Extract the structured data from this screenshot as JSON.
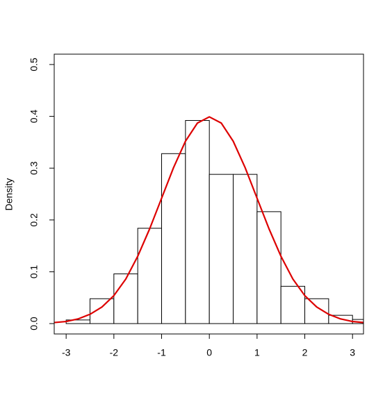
{
  "chart_data": {
    "type": "histogram",
    "y_label": "Density",
    "bins": [
      -3,
      -2.5,
      -2,
      -1.5,
      -1,
      -0.5,
      0,
      0.5,
      1,
      1.5,
      2,
      2.5,
      3,
      3.5
    ],
    "values": [
      0.007,
      0.048,
      0.096,
      0.184,
      0.328,
      0.392,
      0.288,
      0.288,
      0.216,
      0.072,
      0.048,
      0.016,
      0.008
    ],
    "color": "#ffffff",
    "xlim": [
      -3.25,
      3.23
    ],
    "xticks": [
      -3,
      -2,
      -1,
      0,
      1,
      2,
      3
    ],
    "ylim": [
      -0.02,
      0.52
    ],
    "yticks": [
      {
        "value": 0,
        "label": "0.0"
      },
      0.1,
      0.2,
      0.3,
      0.4,
      0.5
    ],
    "curve": {
      "type": "line",
      "color": "#dd0000",
      "x": [
        -3.25,
        -3,
        -2.75,
        -2.5,
        -2.25,
        -2,
        -1.75,
        -1.5,
        -1.25,
        -1,
        -0.75,
        -0.5,
        -0.25,
        0,
        0.25,
        0.5,
        0.75,
        1,
        1.25,
        1.5,
        1.75,
        2,
        2.25,
        2.5,
        2.75,
        3,
        3.25
      ],
      "values": [
        0.002,
        0.004,
        0.009,
        0.018,
        0.032,
        0.054,
        0.086,
        0.13,
        0.183,
        0.242,
        0.301,
        0.352,
        0.387,
        0.399,
        0.387,
        0.352,
        0.301,
        0.242,
        0.183,
        0.13,
        0.086,
        0.054,
        0.032,
        0.018,
        0.009,
        0.004,
        0.002
      ]
    }
  }
}
